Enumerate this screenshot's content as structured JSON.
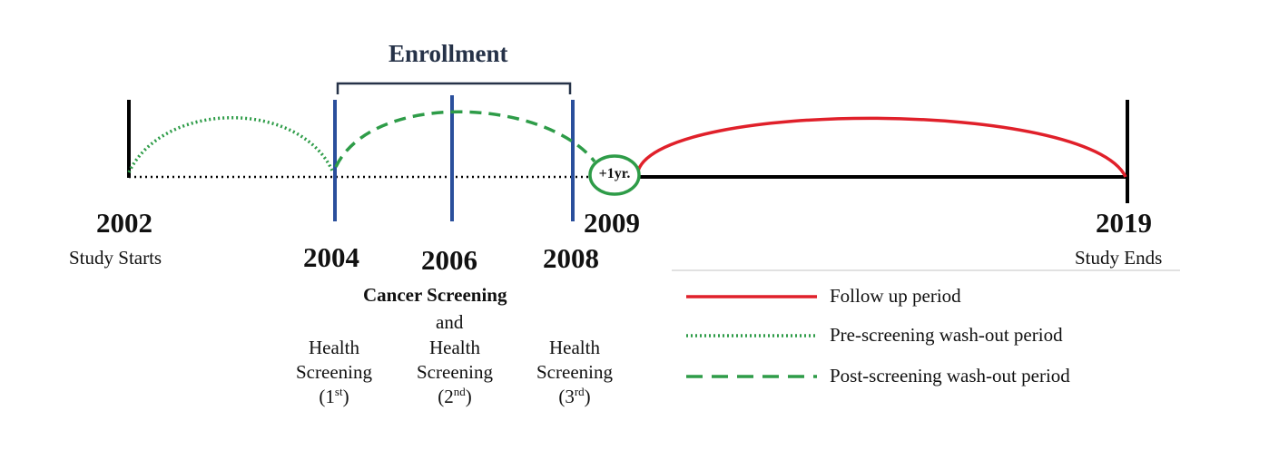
{
  "title": "Enrollment",
  "timeline": {
    "start": {
      "year": "2002",
      "caption": "Study Starts"
    },
    "end": {
      "year": "2019",
      "caption": "Study Ends"
    },
    "screening_years": [
      "2004",
      "2006",
      "2008"
    ],
    "followup_start_year": "2009",
    "gap_label": "+1yr."
  },
  "cancer_screening": {
    "title": "Cancer Screening",
    "and": "and"
  },
  "health_screenings": [
    {
      "line1": "Health",
      "line2": "Screening",
      "num": "1",
      "suffix": "st"
    },
    {
      "line1": "Health",
      "line2": "Screening",
      "num": "2",
      "suffix": "nd"
    },
    {
      "line1": "Health",
      "line2": "Screening",
      "num": "3",
      "suffix": "rd"
    }
  ],
  "legend": [
    {
      "label": "Follow up period",
      "style": "solid",
      "color": "#e0202a"
    },
    {
      "label": "Pre-screening wash-out period",
      "style": "dotted",
      "color": "#2e9c48"
    },
    {
      "label": "Post-screening wash-out period",
      "style": "dashed",
      "color": "#2e9c48"
    }
  ],
  "colors": {
    "screening_marker": "#2a4f9c",
    "axis": "#000000",
    "heading": "#263248"
  }
}
